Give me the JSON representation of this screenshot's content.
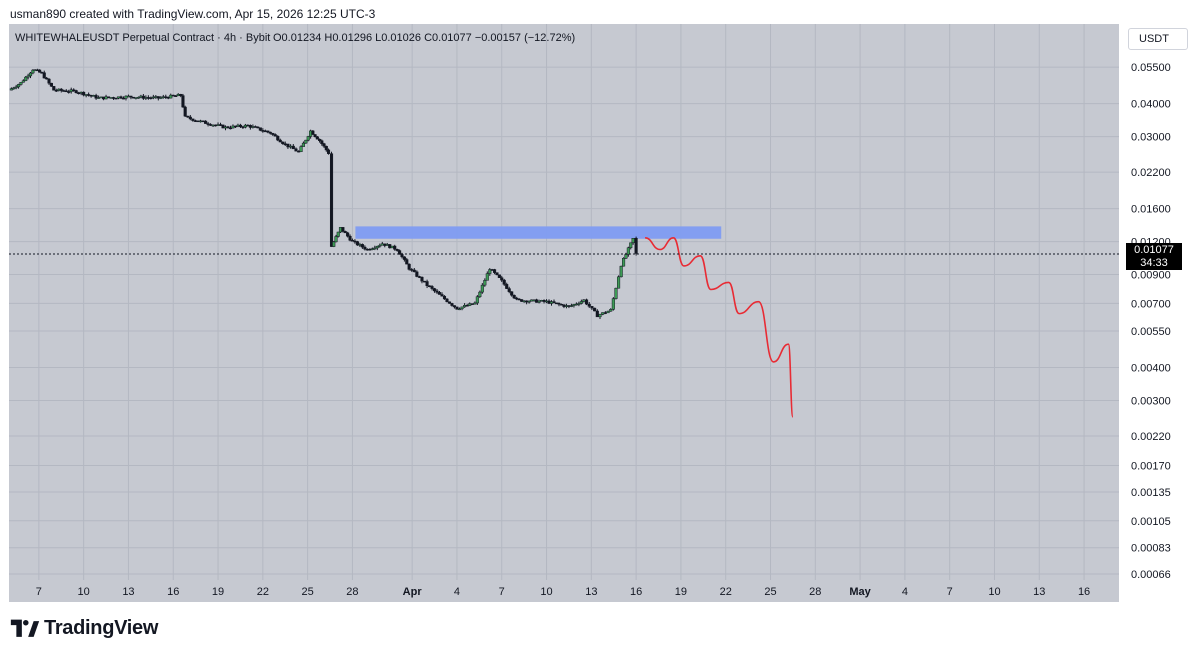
{
  "header": {
    "credit": "usman890 created with TradingView.com, Apr 15, 2026 12:25 UTC-3"
  },
  "legend": {
    "symbol": "WHITEWHALEUSDT Perpetual Contract · 4h · Bybit",
    "ohlc": "O0.01234  H0.01296  L0.01026  C0.01077  −0.00157 (−12.72%)"
  },
  "currency_button": "USDT",
  "last_price_label": {
    "price": "0.01077",
    "countdown": "34:33"
  },
  "footer": {
    "brand": "TradingView"
  },
  "colors": {
    "background": "#c6c9d1",
    "candle": "#131722",
    "rising_body": "#3d9a55",
    "zone": "#7f9cf2",
    "projection": "#e82b34"
  },
  "chart_data": {
    "type": "candlestick",
    "y_scale": "log",
    "ylim": [
      0.00066,
      0.0575
    ],
    "y_ticks": [
      "0.05500",
      "0.04000",
      "0.03000",
      "0.02200",
      "0.01600",
      "0.01200",
      "0.00900",
      "0.00700",
      "0.00550",
      "0.00400",
      "0.00300",
      "0.00220",
      "0.00170",
      "0.00135",
      "0.00105",
      "0.00083",
      "0.00066"
    ],
    "x_ticks": [
      {
        "label": "7",
        "day": 7
      },
      {
        "label": "10",
        "day": 10
      },
      {
        "label": "13",
        "day": 13
      },
      {
        "label": "16",
        "day": 16
      },
      {
        "label": "19",
        "day": 19
      },
      {
        "label": "22",
        "day": 22
      },
      {
        "label": "25",
        "day": 25
      },
      {
        "label": "28",
        "day": 28
      },
      {
        "label": "Apr",
        "day": 32,
        "bold": true
      },
      {
        "label": "4",
        "day": 35
      },
      {
        "label": "7",
        "day": 38
      },
      {
        "label": "10",
        "day": 41
      },
      {
        "label": "13",
        "day": 44
      },
      {
        "label": "16",
        "day": 47
      },
      {
        "label": "19",
        "day": 50
      },
      {
        "label": "22",
        "day": 53
      },
      {
        "label": "25",
        "day": 56
      },
      {
        "label": "28",
        "day": 59
      },
      {
        "label": "May",
        "day": 62,
        "bold": true
      },
      {
        "label": "4",
        "day": 65
      },
      {
        "label": "7",
        "day": 68
      },
      {
        "label": "10",
        "day": 71
      },
      {
        "label": "13",
        "day": 74
      },
      {
        "label": "16",
        "day": 77
      }
    ],
    "xlim": [
      5,
      78
    ],
    "price_path": [
      [
        5.0,
        0.045
      ],
      [
        5.8,
        0.048
      ],
      [
        6.6,
        0.054
      ],
      [
        7.2,
        0.052
      ],
      [
        8.0,
        0.045
      ],
      [
        9.5,
        0.0445
      ],
      [
        11,
        0.042
      ],
      [
        13,
        0.0425
      ],
      [
        15,
        0.042
      ],
      [
        16.5,
        0.043
      ],
      [
        16.8,
        0.0355
      ],
      [
        18,
        0.034
      ],
      [
        19.5,
        0.0325
      ],
      [
        21,
        0.033
      ],
      [
        22.5,
        0.031
      ],
      [
        23.5,
        0.028
      ],
      [
        24.4,
        0.0262
      ],
      [
        25.2,
        0.0315
      ],
      [
        25.8,
        0.029
      ],
      [
        26.4,
        0.026
      ],
      [
        26.6,
        0.0115
      ],
      [
        27.2,
        0.0135
      ],
      [
        28,
        0.012
      ],
      [
        29,
        0.0112
      ],
      [
        30,
        0.0118
      ],
      [
        31,
        0.0112
      ],
      [
        31.8,
        0.0095
      ],
      [
        33,
        0.0082
      ],
      [
        34,
        0.0074
      ],
      [
        35,
        0.0067
      ],
      [
        36.2,
        0.007
      ],
      [
        37.2,
        0.0095
      ],
      [
        38,
        0.0085
      ],
      [
        39,
        0.0072
      ],
      [
        41,
        0.0071
      ],
      [
        42.5,
        0.0068
      ],
      [
        43.5,
        0.0072
      ],
      [
        44.4,
        0.0063
      ],
      [
        45.3,
        0.0066
      ],
      [
        46,
        0.0098
      ],
      [
        46.8,
        0.0123
      ],
      [
        47.0,
        0.01077
      ]
    ],
    "resistance_zone": {
      "x_start": 28.2,
      "x_end": 52.7,
      "y_low": 0.0123,
      "y_high": 0.0137
    },
    "projection_path": [
      [
        47.6,
        0.0124
      ],
      [
        48.6,
        0.0112
      ],
      [
        49.5,
        0.0124
      ],
      [
        50.2,
        0.0097
      ],
      [
        51.3,
        0.0106
      ],
      [
        52.0,
        0.0079
      ],
      [
        53.2,
        0.0084
      ],
      [
        53.9,
        0.0064
      ],
      [
        55.2,
        0.0071
      ],
      [
        56.2,
        0.0042
      ],
      [
        57.2,
        0.0049
      ],
      [
        57.5,
        0.0026
      ]
    ],
    "last_price": 0.01077
  }
}
